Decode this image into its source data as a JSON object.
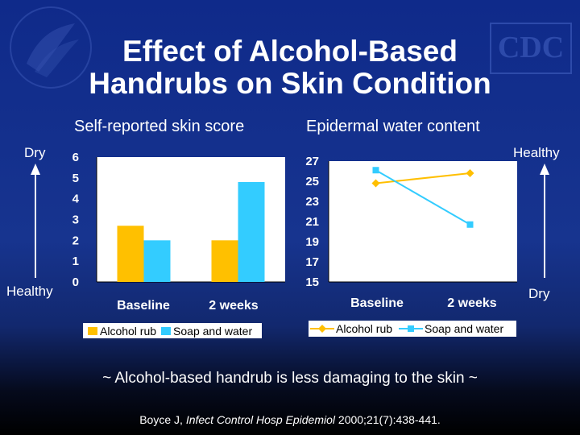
{
  "slide": {
    "title_line1": "Effect of Alcohol-Based",
    "title_line2": "Handrubs on Skin Condition",
    "logo_text": "CDC",
    "tagline": "~ Alcohol-based handrub is less damaging to the skin ~",
    "citation_prefix": "Boyce J, ",
    "citation_journal": "Infect Control Hosp Epidemiol",
    "citation_suffix": " 2000;21(7):438-441."
  },
  "colors": {
    "alcohol_rub": "#ffc000",
    "soap_and_water": "#33ccff",
    "line_alcohol": "#ffbf00",
    "line_soap": "#33ccff"
  },
  "chart_data": [
    {
      "type": "bar",
      "title": "Self-reported skin score",
      "top_label": "Dry",
      "bottom_label": "Healthy",
      "categories": [
        "Baseline",
        "2 weeks"
      ],
      "series": [
        {
          "name": "Alcohol rub",
          "values": [
            2.7,
            2.0
          ]
        },
        {
          "name": "Soap and water",
          "values": [
            2.0,
            4.8
          ]
        }
      ],
      "ylim": [
        0,
        6
      ],
      "yticks": [
        "0",
        "1",
        "2",
        "3",
        "4",
        "5",
        "6"
      ],
      "legend": "bottom",
      "grid": false
    },
    {
      "type": "line",
      "title": "Epidermal water content",
      "top_label": "Healthy",
      "bottom_label": "Dry",
      "categories": [
        "Baseline",
        "2 weeks"
      ],
      "series": [
        {
          "name": "Alcohol rub",
          "values": [
            24.8,
            25.8
          ]
        },
        {
          "name": "Soap and water",
          "values": [
            26.1,
            20.7
          ]
        }
      ],
      "ylim": [
        15,
        27
      ],
      "yticks": [
        "15",
        "17",
        "19",
        "21",
        "23",
        "25",
        "27"
      ],
      "legend": "bottom",
      "grid": false
    }
  ]
}
